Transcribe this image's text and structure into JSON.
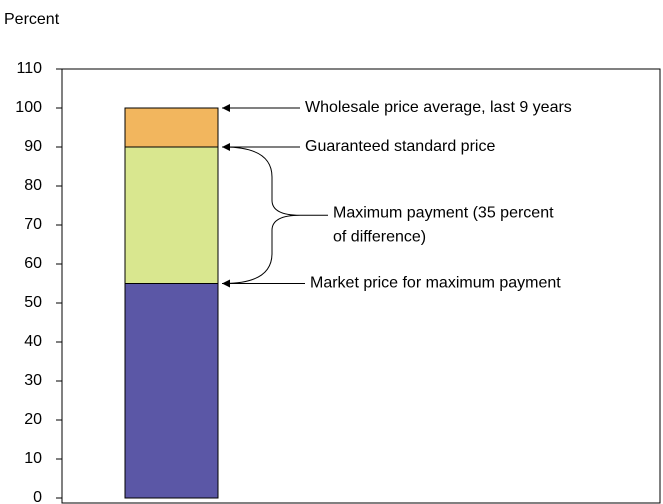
{
  "chart_data": {
    "type": "stacked_bar",
    "y_label": "Percent",
    "categories": [
      null
    ],
    "series": [
      {
        "color": "#5b57a6",
        "values": [
          55
        ]
      },
      {
        "color": "#d9e78f",
        "values": [
          35
        ]
      },
      {
        "color": "#f2b65e",
        "values": [
          10
        ]
      }
    ],
    "ylim": [
      0,
      110
    ],
    "yticks": [
      0,
      10,
      20,
      30,
      40,
      50,
      60,
      70,
      80,
      90,
      100,
      110
    ],
    "annotations": [
      "Wholesale price average, last 9 years",
      "Guaranteed standard price",
      "Maximum payment (35 percent",
      "of difference)",
      "Market price for maximum payment"
    ]
  }
}
